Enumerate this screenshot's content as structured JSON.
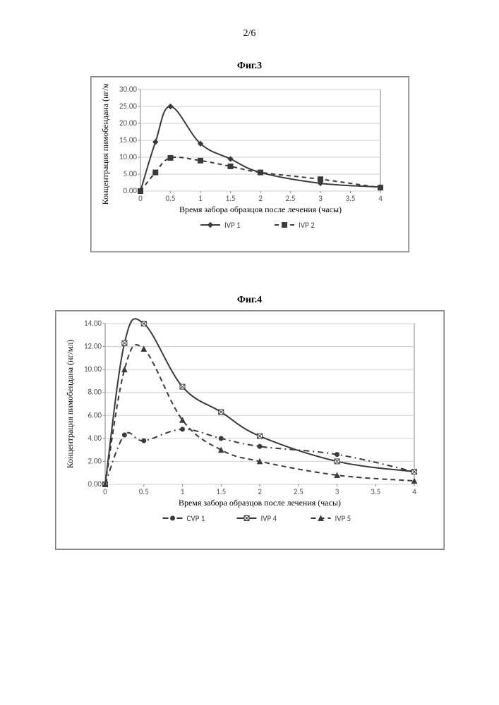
{
  "page_number": "2/6",
  "figures": {
    "fig3": {
      "title": "Фиг.3",
      "y_axis_label": "Концентрация пимобендана (нг/мл)",
      "x_axis_label": "Время забора образцов после лечения (часы)",
      "x_ticks": [
        0,
        0.5,
        1,
        1.5,
        2,
        2.5,
        3,
        3.5,
        4
      ],
      "y_ticks": [
        0.0,
        5.0,
        10.0,
        15.0,
        20.0,
        25.0,
        30.0
      ],
      "y_tick_labels": [
        "0.00",
        "5.00",
        "10.00",
        "15.00",
        "20.00",
        "25.00",
        "30.00"
      ],
      "xlim": [
        0,
        4
      ],
      "ylim": [
        0,
        30
      ],
      "grid_color": "#d0d0d0",
      "axis_color": "#808080",
      "background_color": "#ffffff",
      "series": [
        {
          "name": "IVP 1",
          "color": "#3a3a3a",
          "line_dash": "none",
          "marker": "diamond",
          "marker_size": 7,
          "line_width": 2,
          "x": [
            0,
            0.25,
            0.5,
            1,
            1.5,
            2,
            3,
            4
          ],
          "y": [
            0,
            14.5,
            25.0,
            14.0,
            9.5,
            5.5,
            2.3,
            1.2
          ]
        },
        {
          "name": "IVP 2",
          "color": "#3a3a3a",
          "line_dash": "6,5",
          "marker": "square",
          "marker_size": 7,
          "line_width": 2,
          "x": [
            0,
            0.25,
            0.5,
            1,
            1.5,
            2,
            3,
            4
          ],
          "y": [
            0,
            5.5,
            9.8,
            9.0,
            7.3,
            5.5,
            3.5,
            1.0
          ]
        }
      ]
    },
    "fig4": {
      "title": "Фиг.4",
      "y_axis_label": "Концентрация пимобендана (нг/мл)",
      "x_axis_label": "Время забора образцов после лечения (часы)",
      "x_ticks": [
        0,
        0.5,
        1,
        1.5,
        2,
        2.5,
        3,
        3.5,
        4
      ],
      "y_ticks": [
        0.0,
        2.0,
        4.0,
        6.0,
        8.0,
        10.0,
        12.0,
        14.0
      ],
      "y_tick_labels": [
        "0.00",
        "2.00",
        "4.00",
        "6.00",
        "8.00",
        "10.00",
        "12.00",
        "14.00"
      ],
      "xlim": [
        0,
        4
      ],
      "ylim": [
        0,
        14
      ],
      "grid_color": "#d0d0d0",
      "axis_color": "#808080",
      "background_color": "#ffffff",
      "series": [
        {
          "name": "CVP 1",
          "color": "#3a3a3a",
          "line_dash": "8,5,2,5",
          "marker": "circle",
          "marker_size": 6,
          "line_width": 2,
          "x": [
            0,
            0.25,
            0.5,
            1,
            1.5,
            2,
            3,
            4
          ],
          "y": [
            0,
            4.3,
            3.8,
            4.8,
            4.0,
            3.3,
            2.6,
            1.1
          ]
        },
        {
          "name": "IVP 4",
          "color": "#3a3a3a",
          "line_dash": "none",
          "marker": "square-cross",
          "marker_size": 7,
          "line_width": 2,
          "x": [
            0,
            0.25,
            0.5,
            1,
            1.5,
            2,
            3,
            4
          ],
          "y": [
            0,
            12.3,
            14.0,
            8.5,
            6.3,
            4.2,
            2.0,
            1.1
          ]
        },
        {
          "name": "IVP 5",
          "color": "#3a3a3a",
          "line_dash": "7,5",
          "marker": "triangle",
          "marker_size": 7,
          "line_width": 2,
          "x": [
            0,
            0.25,
            0.5,
            1,
            1.5,
            2,
            3,
            4
          ],
          "y": [
            0,
            10.0,
            11.8,
            5.6,
            3.0,
            2.0,
            0.8,
            0.3
          ]
        }
      ]
    }
  }
}
